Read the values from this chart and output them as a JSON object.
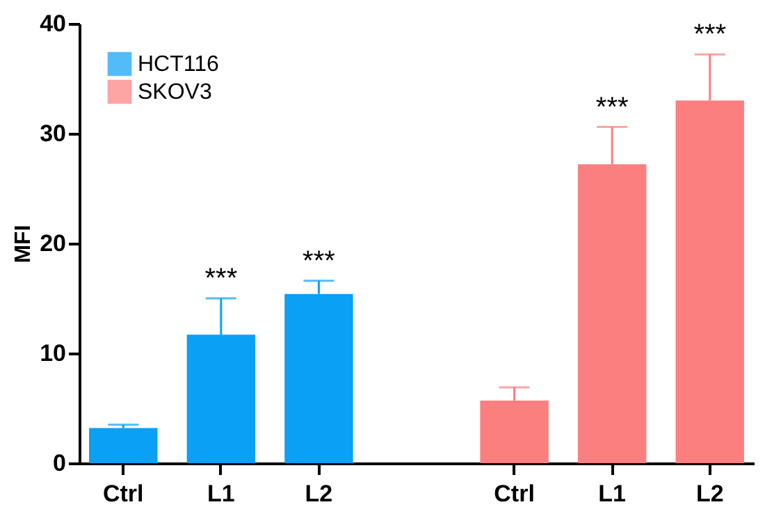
{
  "chart_data": {
    "type": "bar",
    "ylabel": "MFI",
    "categories": [
      "Ctrl",
      "L1",
      "L2",
      null,
      "Ctrl",
      "L1",
      "L2"
    ],
    "series": [
      {
        "name": "HCT116",
        "color": "#0aa0f5",
        "values": [
          3.2,
          11.7,
          15.4,
          null,
          null,
          null,
          null
        ],
        "errors": [
          [
            3.2,
            3.5
          ],
          [
            11.7,
            15.0
          ],
          [
            15.4,
            16.6
          ],
          null,
          null,
          null,
          null
        ]
      },
      {
        "name": "SKOV3",
        "color": "#fc7f7f",
        "values": [
          null,
          null,
          null,
          null,
          5.7,
          27.2,
          33.0
        ],
        "errors": [
          null,
          null,
          null,
          null,
          [
            5.7,
            6.9
          ],
          [
            27.2,
            30.6
          ],
          [
            33.0,
            37.2
          ]
        ]
      }
    ],
    "annotations": [
      {
        "text": "***",
        "y": 15.0
      },
      {
        "text": "***",
        "y": 16.6
      },
      {
        "text": "***",
        "y": 30.6
      },
      {
        "text": "***",
        "y": 37.2
      }
    ],
    "ylim": [
      0,
      40
    ],
    "yticks": [
      0,
      10,
      20,
      30,
      40
    ],
    "grid": false,
    "legend": "top left"
  }
}
